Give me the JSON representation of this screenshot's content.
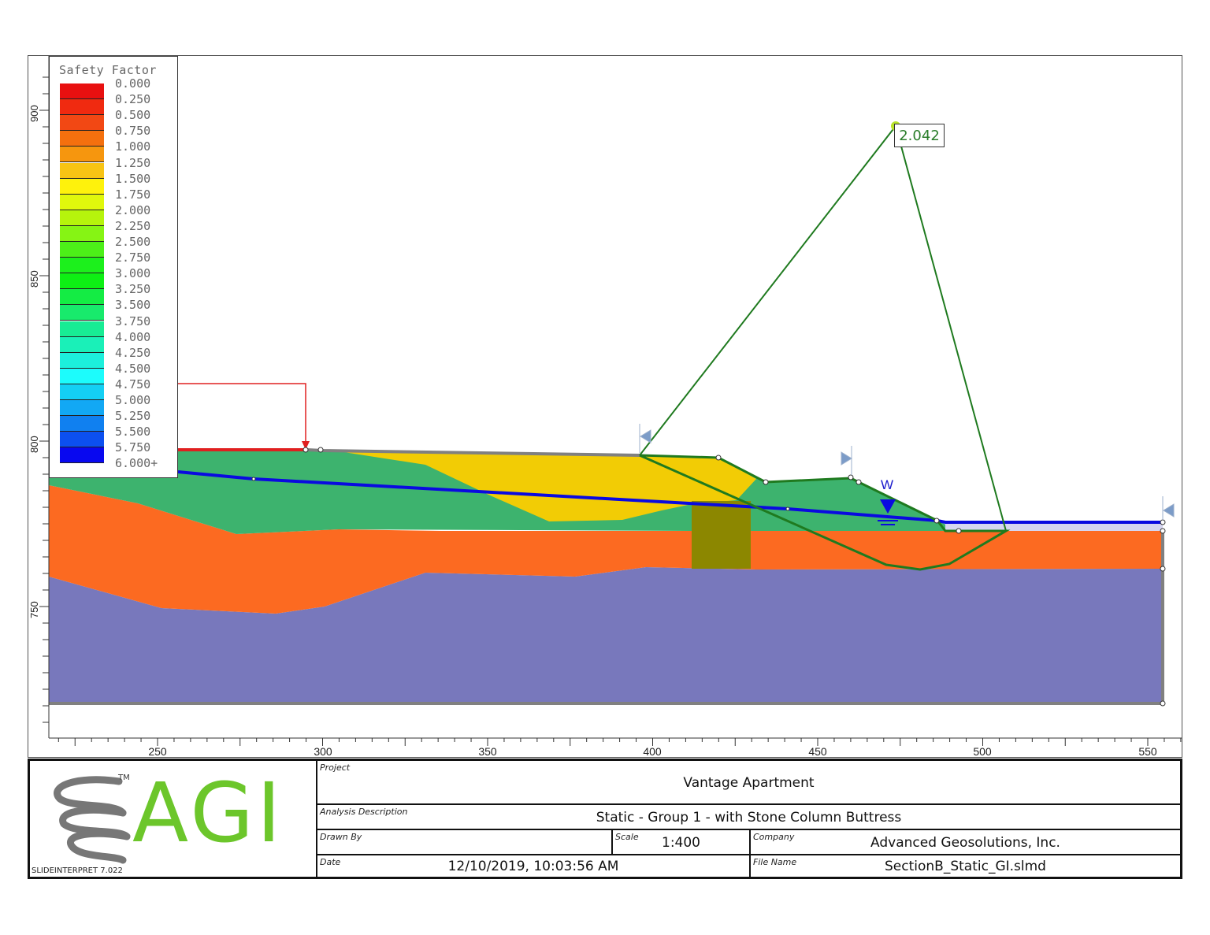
{
  "legend": {
    "title": "Safety Factor",
    "items": [
      {
        "label": "0.000",
        "color": "#e81010"
      },
      {
        "label": "0.250",
        "color": "#f02a10"
      },
      {
        "label": "0.500",
        "color": "#f24814"
      },
      {
        "label": "0.750",
        "color": "#f4700e"
      },
      {
        "label": "1.000",
        "color": "#f6960e"
      },
      {
        "label": "1.250",
        "color": "#f8c414"
      },
      {
        "label": "1.500",
        "color": "#fef20c"
      },
      {
        "label": "1.750",
        "color": "#e0f80c"
      },
      {
        "label": "2.000",
        "color": "#b6f40c"
      },
      {
        "label": "2.250",
        "color": "#86f414"
      },
      {
        "label": "2.500",
        "color": "#4cf018"
      },
      {
        "label": "2.750",
        "color": "#1cf01c"
      },
      {
        "label": "3.000",
        "color": "#0ef014"
      },
      {
        "label": "3.250",
        "color": "#14ec44"
      },
      {
        "label": "3.500",
        "color": "#18ea6c"
      },
      {
        "label": "3.750",
        "color": "#18ec94"
      },
      {
        "label": "4.000",
        "color": "#1af0b8"
      },
      {
        "label": "4.250",
        "color": "#1cf0dc"
      },
      {
        "label": "4.500",
        "color": "#1cfcfc"
      },
      {
        "label": "4.750",
        "color": "#14d0f4"
      },
      {
        "label": "5.000",
        "color": "#12a8f4"
      },
      {
        "label": "5.250",
        "color": "#1080f0"
      },
      {
        "label": "5.500",
        "color": "#0c50f0"
      },
      {
        "label": "5.750",
        "color": "#0808f0"
      },
      {
        "label": "6.000+",
        "color": "#0000e8"
      }
    ]
  },
  "plot": {
    "x_axis": {
      "ticks": [
        "250",
        "300",
        "350",
        "400",
        "450",
        "500",
        "550"
      ]
    },
    "y_axis": {
      "ticks": [
        "900",
        "850",
        "800",
        "750"
      ]
    },
    "factor_of_safety": "2.042",
    "water_table_label": "W",
    "colors": {
      "fill_green": "#3db36e",
      "fill_orange": "#fc6a21",
      "fill_purple": "#7878bc",
      "fill_yellow": "#f2cc05",
      "fill_olive": "#8c8700",
      "boundary_gray": "#808080",
      "slip_surface": "#1f7a1f",
      "water_table": "#0a0ae0",
      "load_red": "#e02020",
      "limit_marker": "#7c9cc8"
    }
  },
  "title_block": {
    "logo_text": "AGI",
    "trademark": "TM",
    "version": "SLIDEINTERPRET 7.022",
    "project_label": "Project",
    "project_value": "Vantage Apartment",
    "analysis_label": "Analysis Description",
    "analysis_value": "Static - Group 1 - with Stone Column Buttress",
    "drawn_by_label": "Drawn By",
    "drawn_by_value": "",
    "scale_label": "Scale",
    "scale_value": "1:400",
    "company_label": "Company",
    "company_value": "Advanced Geosolutions, Inc.",
    "date_label": "Date",
    "date_value": "12/10/2019, 10:03:56 AM",
    "file_label": "File Name",
    "file_value": "SectionB_Static_GI.slmd"
  }
}
